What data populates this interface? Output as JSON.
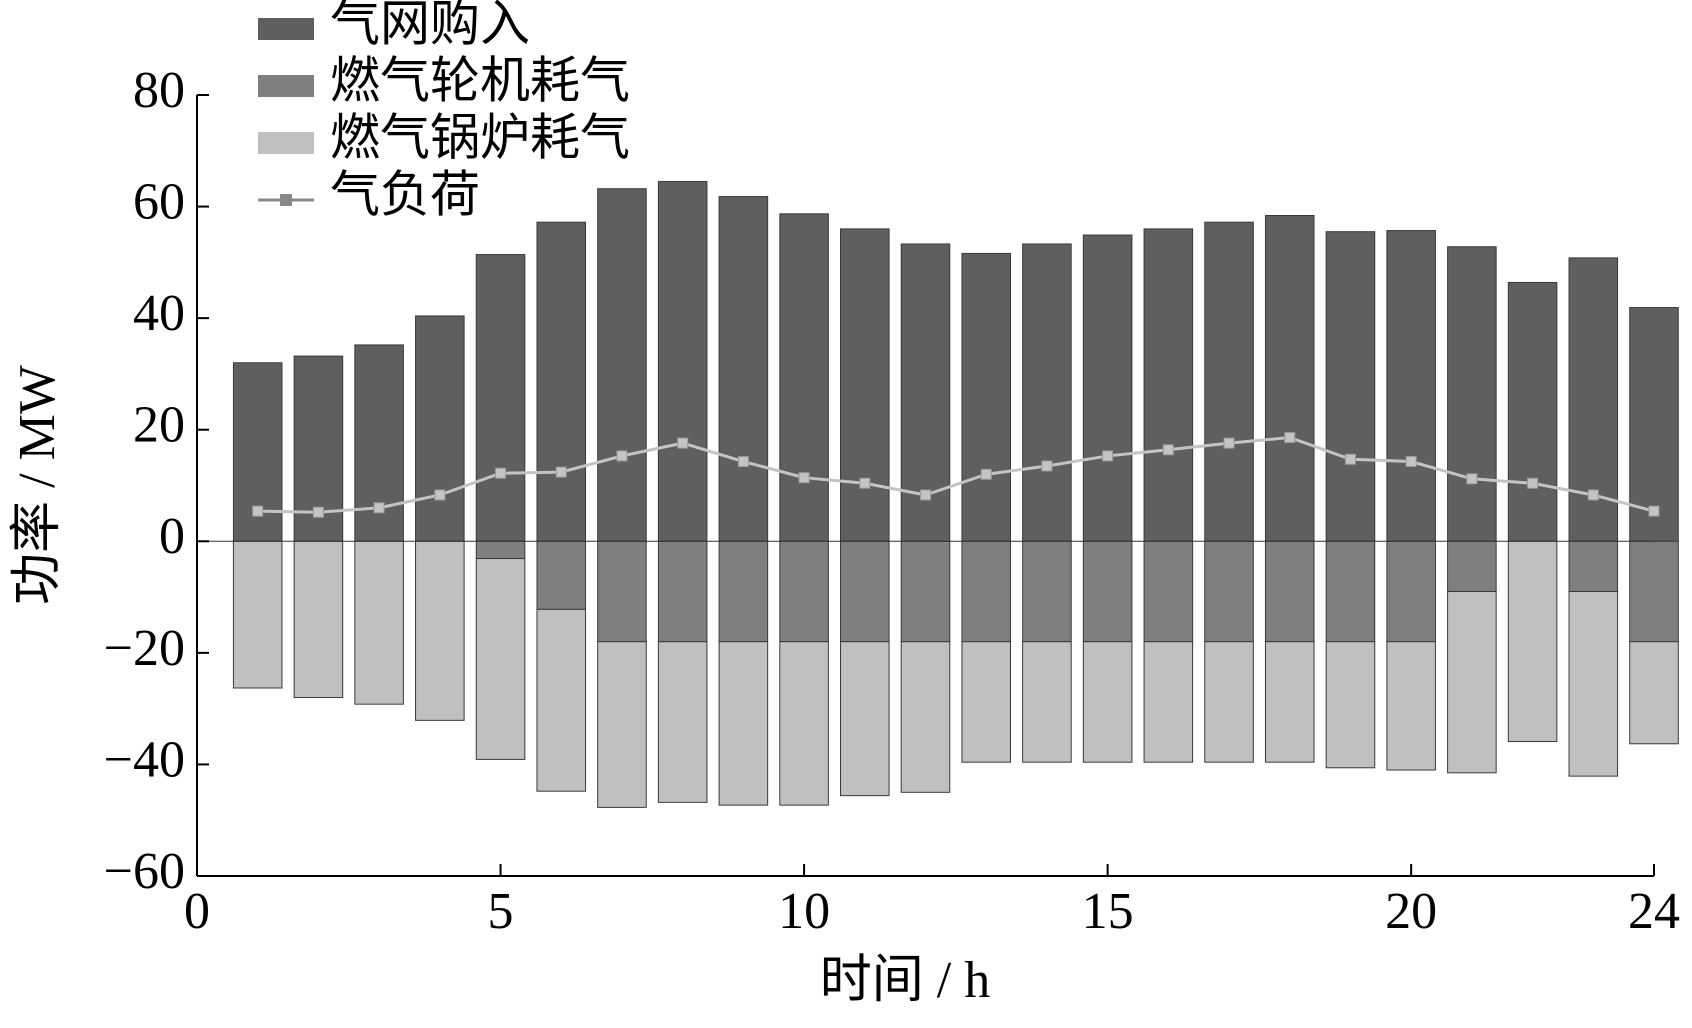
{
  "chart_data": {
    "type": "bar",
    "xlabel": "时间 / h",
    "ylabel": "功率 / MW",
    "x": [
      1,
      2,
      3,
      4,
      5,
      6,
      7,
      8,
      9,
      10,
      11,
      12,
      13,
      14,
      15,
      16,
      17,
      18,
      19,
      20,
      21,
      22,
      23,
      24
    ],
    "xlim": [
      0,
      24
    ],
    "xticks": [
      0,
      5,
      10,
      15,
      20,
      24
    ],
    "ylim": [
      -60,
      80
    ],
    "yticks": [
      {
        "value": -60,
        "label": "−60"
      },
      {
        "value": -40,
        "label": "−40"
      },
      {
        "value": -20,
        "label": "−20"
      },
      0,
      20,
      40,
      60,
      80
    ],
    "legend": "upper left",
    "series": [
      {
        "name": "气网购入",
        "type": "bar",
        "color": "#5f5f5f",
        "values": [
          32,
          33.2,
          35.2,
          40.4,
          51.4,
          57.2,
          63.2,
          64.5,
          61.8,
          58.7,
          56,
          53.3,
          51.6,
          53.3,
          54.9,
          56,
          57.2,
          58.4,
          55.5,
          55.7,
          52.8,
          46.4,
          50.8,
          41.9
        ]
      },
      {
        "name": "燃气轮机耗气",
        "type": "bar",
        "color": "#7f7f7f",
        "values": [
          0,
          0,
          0,
          0,
          -3.1,
          -12.2,
          -18,
          -18,
          -18,
          -18,
          -18,
          -18,
          -18,
          -18,
          -18,
          -18,
          -18,
          -18,
          -18,
          -18,
          -9,
          0,
          -9,
          -18
        ]
      },
      {
        "name": "燃气锅炉耗气",
        "type": "bar",
        "color": "#c0c0c0",
        "values": [
          -26.3,
          -28,
          -29.2,
          -32.1,
          -36,
          -32.6,
          -29.7,
          -28.8,
          -29.3,
          -29.3,
          -27.6,
          -27,
          -21.6,
          -21.6,
          -21.6,
          -21.6,
          -21.6,
          -21.6,
          -22.6,
          -23,
          -32.5,
          -35.9,
          -33.1,
          -18.3
        ]
      },
      {
        "name": "气负荷",
        "type": "line",
        "color": "#c4c4c4",
        "values": [
          5.4,
          5.2,
          6,
          8.3,
          12.2,
          12.4,
          15.3,
          17.6,
          14.3,
          11.4,
          10.4,
          8.3,
          12,
          13.5,
          15.3,
          16.4,
          17.6,
          18.6,
          14.7,
          14.3,
          11.2,
          10.4,
          8.3,
          5.4
        ]
      }
    ]
  }
}
